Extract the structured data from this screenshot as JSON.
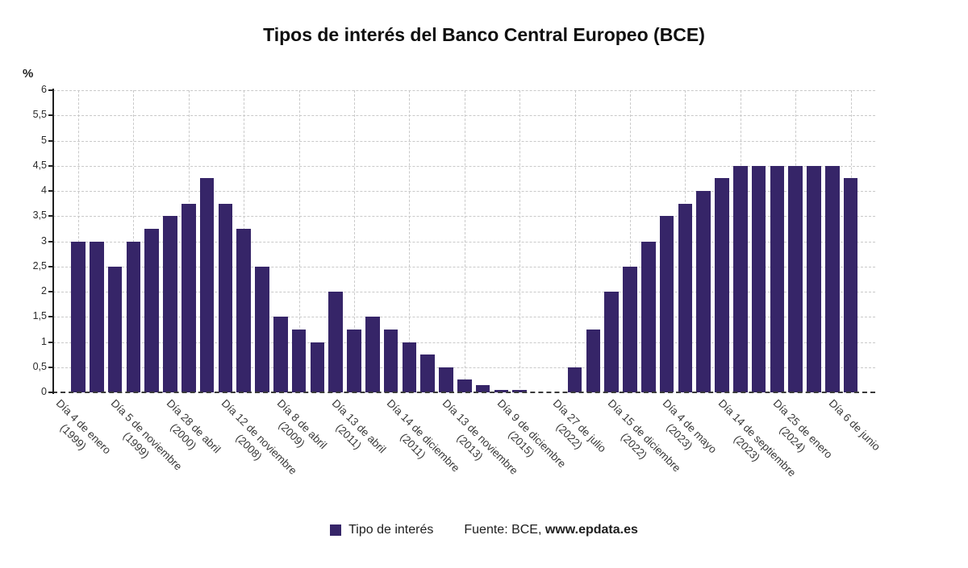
{
  "title": "Tipos de interés del Banco Central Europeo (BCE)",
  "y_axis_unit": "%",
  "legend": {
    "series_label": "Tipo de interés",
    "source_prefix": "Fuente: BCE, ",
    "source_link": "www.epdata.es"
  },
  "colors": {
    "bar": "#362568",
    "grid": "#c9c9c9",
    "axis": "#1f1f1f",
    "baseline": "#3a3a3a",
    "title_text": "#0f0f0f",
    "tick_text": "#2b2b2b"
  },
  "chart_data": {
    "type": "bar",
    "title": "Tipos de interés del Banco Central Europeo (BCE)",
    "ylabel": "%",
    "ylim": [
      0,
      6
    ],
    "y_tick_step": 0.5,
    "y_tick_labels": [
      "0",
      "0,5",
      "1",
      "1,5",
      "2",
      "2,5",
      "3",
      "3,5",
      "4",
      "4,5",
      "5",
      "5,5",
      "6"
    ],
    "grid": true,
    "legend_position": "bottom",
    "series_name": "Tipo de interés",
    "values": [
      3,
      3,
      2.5,
      3,
      3.25,
      3.5,
      3.75,
      4.25,
      3.75,
      3.25,
      2.5,
      1.5,
      1.25,
      1,
      2,
      1.25,
      1.5,
      1.25,
      1,
      0.75,
      0.5,
      0.25,
      0.15,
      0.05,
      0.05,
      0,
      0,
      0.5,
      1.25,
      2,
      2.5,
      3,
      3.5,
      3.75,
      4,
      4.25,
      4.5,
      4.5,
      4.5,
      4.5,
      4.5,
      4.5,
      4.25
    ],
    "tick_positions": [
      0,
      3,
      6,
      9,
      12,
      15,
      18,
      21,
      24,
      27,
      30,
      33,
      36,
      39,
      42
    ],
    "x_tick_labels": [
      {
        "text": "Día 4 de enero",
        "year": "(1999)"
      },
      {
        "text": "Día 5 de noviembre",
        "year": "(1999)"
      },
      {
        "text": "Día 28 de abril",
        "year": "(2000)"
      },
      {
        "text": "Día 12 de noviembre",
        "year": "(2008)"
      },
      {
        "text": "Día 8 de abril",
        "year": "(2009)"
      },
      {
        "text": "Día 13 de abril",
        "year": "(2011)"
      },
      {
        "text": "Día 14 de diciembre",
        "year": "(2011)"
      },
      {
        "text": "Día 13 de noviembre",
        "year": "(2013)"
      },
      {
        "text": "Día 9 de diciembre",
        "year": "(2015)"
      },
      {
        "text": "Día 27 de julio",
        "year": "(2022)"
      },
      {
        "text": "Día 15 de diciembre",
        "year": "(2022)"
      },
      {
        "text": "Día 4 de mayo",
        "year": "(2023)"
      },
      {
        "text": "Día 14 de septiembre",
        "year": "(2023)"
      },
      {
        "text": "Día 25 de enero",
        "year": "(2024)"
      },
      {
        "text": "Día 6 de junio",
        "year": ""
      }
    ]
  }
}
